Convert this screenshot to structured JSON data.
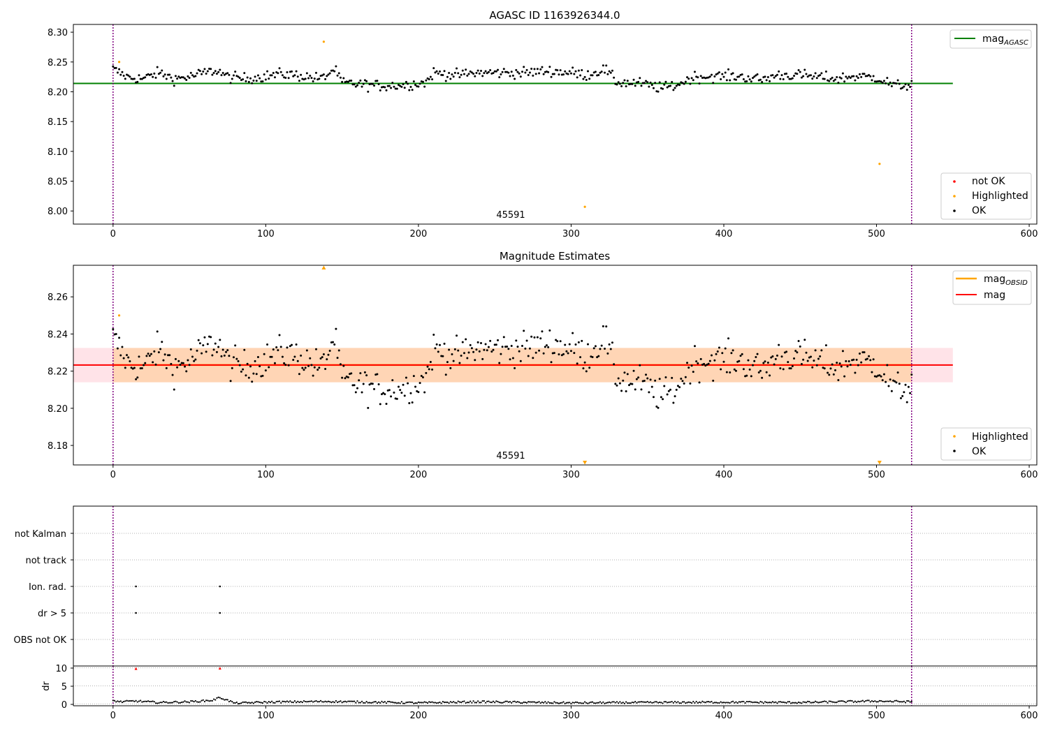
{
  "figure": {
    "panel1": {
      "title": "AGASC ID 1163926344.0",
      "annotation": "45591",
      "yticks": [
        "8.00",
        "8.05",
        "8.10",
        "8.15",
        "8.20",
        "8.25",
        "8.30"
      ],
      "xticks": [
        "0",
        "100",
        "200",
        "300",
        "400",
        "500",
        "600"
      ],
      "legend_line": "mag",
      "legend_line_sub": "AGASC",
      "legend_points": [
        "not OK",
        "Highlighted",
        "OK"
      ]
    },
    "panel2": {
      "title": "Magnitude Estimates",
      "annotation": "45591",
      "yticks": [
        "8.18",
        "8.20",
        "8.22",
        "8.24",
        "8.26"
      ],
      "xticks": [
        "0",
        "100",
        "200",
        "300",
        "400",
        "500",
        "600"
      ],
      "legend_line1": "mag",
      "legend_line1_sub": "OBSID",
      "legend_line2": "mag",
      "legend_points": [
        "Highlighted",
        "OK"
      ]
    },
    "panel3": {
      "flag_labels": [
        "not Kalman",
        "not track",
        "Ion. rad.",
        "dr > 5",
        "OBS not OK"
      ],
      "dr_ylabel": "dr",
      "dr_yticks": [
        "0",
        "5",
        "10"
      ],
      "xticks": [
        "0",
        "100",
        "200",
        "300",
        "400",
        "500",
        "600"
      ]
    }
  },
  "chart_data": [
    {
      "type": "scatter",
      "title": "AGASC ID 1163926344.0",
      "xlim": [
        -26,
        605
      ],
      "ylim": [
        7.978,
        8.313
      ],
      "grid": false,
      "legend_placement": [
        "top-right",
        "bottom-right"
      ],
      "obsid_annotation": {
        "text": "45591",
        "x": 261
      },
      "vertical_lines": [
        0,
        523
      ],
      "horizontal_lines": [
        {
          "name": "mag_AGASC",
          "y": 8.214,
          "xrange": [
            -26,
            550
          ],
          "color": "#008000"
        }
      ],
      "ok_series_profile": [
        [
          0,
          8.238
        ],
        [
          10,
          8.224
        ],
        [
          20,
          8.222
        ],
        [
          30,
          8.232
        ],
        [
          40,
          8.222
        ],
        [
          50,
          8.225
        ],
        [
          60,
          8.232
        ],
        [
          68,
          8.236
        ],
        [
          75,
          8.225
        ],
        [
          85,
          8.222
        ],
        [
          100,
          8.226
        ],
        [
          110,
          8.23
        ],
        [
          120,
          8.228
        ],
        [
          130,
          8.224
        ],
        [
          137,
          8.222
        ],
        [
          145,
          8.238
        ],
        [
          150,
          8.215
        ],
        [
          160,
          8.213
        ],
        [
          175,
          8.21
        ],
        [
          190,
          8.211
        ],
        [
          205,
          8.216
        ],
        [
          210,
          8.232
        ],
        [
          225,
          8.228
        ],
        [
          240,
          8.232
        ],
        [
          255,
          8.232
        ],
        [
          270,
          8.232
        ],
        [
          285,
          8.235
        ],
        [
          300,
          8.232
        ],
        [
          310,
          8.228
        ],
        [
          322,
          8.238
        ],
        [
          330,
          8.216
        ],
        [
          345,
          8.214
        ],
        [
          360,
          8.206
        ],
        [
          370,
          8.212
        ],
        [
          380,
          8.225
        ],
        [
          395,
          8.226
        ],
        [
          410,
          8.226
        ],
        [
          425,
          8.22
        ],
        [
          435,
          8.228
        ],
        [
          450,
          8.228
        ],
        [
          465,
          8.224
        ],
        [
          475,
          8.222
        ],
        [
          485,
          8.226
        ],
        [
          500,
          8.224
        ],
        [
          512,
          8.21
        ],
        [
          523,
          8.212
        ]
      ],
      "ok_count": 523,
      "highlighted": [
        {
          "x": 4,
          "y": 8.25
        },
        {
          "x": 138,
          "y": 8.284
        },
        {
          "x": 309,
          "y": 8.007
        },
        {
          "x": 502,
          "y": 8.079
        }
      ],
      "colors": {
        "ok": "#000000",
        "highlighted": "#ffa500",
        "not_ok": "#ff0000",
        "mag_agasc": "#008000",
        "vlines": "#800080"
      }
    },
    {
      "type": "scatter",
      "title": "Magnitude Estimates",
      "xlim": [
        -26,
        605
      ],
      "ylim": [
        8.1695,
        8.277
      ],
      "grid": false,
      "legend_placement": [
        "top-right",
        "bottom-right"
      ],
      "obsid_annotation": {
        "text": "45591",
        "x": 261
      },
      "vertical_lines": [
        0,
        523
      ],
      "horizontal_lines": [
        {
          "name": "mag",
          "y": 8.2233,
          "xrange": [
            -26,
            550
          ],
          "color": "#ff0000"
        }
      ],
      "bands": [
        {
          "name": "mag band",
          "y0": 8.214,
          "y1": 8.2325,
          "xrange": [
            -26,
            550
          ],
          "color": "#ffc0cb"
        },
        {
          "name": "mag_OBSID band",
          "y0": 8.214,
          "y1": 8.2325,
          "xrange": [
            0,
            523
          ],
          "color": "#ffa500"
        }
      ],
      "obsid_line": {
        "name": "mag_OBSID",
        "y": 8.2233,
        "xrange": [
          0,
          523
        ],
        "color": "#ffa500"
      },
      "highlighted": [
        {
          "x": 4,
          "y": 8.25
        },
        {
          "x": 138,
          "y": 8.2755,
          "marker": "up-triangle"
        },
        {
          "x": 309,
          "y": 8.171,
          "marker": "down-triangle"
        },
        {
          "x": 502,
          "y": 8.171,
          "marker": "down-triangle"
        }
      ],
      "colors": {
        "ok": "#000000",
        "highlighted": "#ffa500",
        "mag": "#ff0000"
      }
    },
    {
      "type": "scatter",
      "title": "",
      "categories": [
        "not Kalman",
        "not track",
        "Ion. rad.",
        "dr > 5",
        "OBS not OK"
      ],
      "xlim": [
        -26,
        605
      ],
      "grid": true,
      "vertical_lines": [
        0,
        523
      ],
      "flag_points": {
        "Ion. rad.": [
          15,
          70
        ],
        "dr > 5": [
          15,
          70
        ]
      }
    },
    {
      "type": "scatter",
      "title": "",
      "ylabel": "dr",
      "xlim": [
        -26,
        605
      ],
      "ylim": [
        -0.5,
        10.5
      ],
      "grid": true,
      "vertical_lines": [
        0,
        523
      ],
      "dr_profile": [
        [
          0,
          0.9
        ],
        [
          5,
          0.6
        ],
        [
          15,
          0.8
        ],
        [
          30,
          0.4
        ],
        [
          50,
          0.6
        ],
        [
          65,
          1.0
        ],
        [
          70,
          1.8
        ],
        [
          80,
          0.2
        ],
        [
          100,
          0.5
        ],
        [
          140,
          0.7
        ],
        [
          200,
          0.3
        ],
        [
          240,
          0.6
        ],
        [
          300,
          0.3
        ],
        [
          400,
          0.5
        ],
        [
          450,
          0.4
        ],
        [
          500,
          0.8
        ],
        [
          523,
          0.6
        ]
      ],
      "not_ok": [
        {
          "x": 15,
          "y": 9.7
        },
        {
          "x": 70,
          "y": 9.8
        }
      ]
    }
  ]
}
